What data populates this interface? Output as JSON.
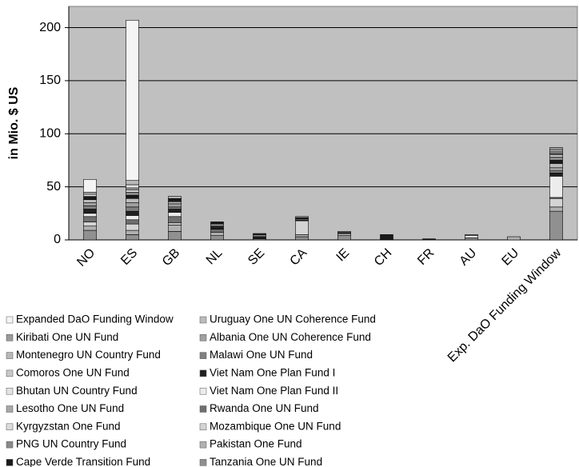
{
  "chart_data": {
    "type": "stacked_bar",
    "ylabel": "in Mio. $ US",
    "categories": [
      "NO",
      "ES",
      "GB",
      "NL",
      "SE",
      "CA",
      "IE",
      "CH",
      "FR",
      "AU",
      "EU",
      "Exp. DaO Funding Window"
    ],
    "ylim": [
      0,
      220
    ],
    "yticks": [
      0,
      50,
      100,
      150,
      200
    ],
    "grid": true,
    "series": [
      {
        "name": "Expanded DaO Funding Window",
        "color": "#f4f4f4",
        "values": [
          12,
          151,
          0,
          0,
          0,
          0,
          0,
          0,
          0,
          0,
          0,
          0
        ]
      },
      {
        "name": "Kiribati One UN Fund",
        "color": "#9a9a9a",
        "values": [
          0,
          0,
          0,
          0,
          0,
          0,
          0,
          0,
          0,
          0,
          0,
          2
        ]
      },
      {
        "name": "Montenegro UN Country Fund",
        "color": "#b8b8b8",
        "values": [
          2,
          4,
          2,
          0,
          0,
          1,
          0,
          0,
          0,
          0,
          0,
          2
        ]
      },
      {
        "name": "Comoros One UN Fund",
        "color": "#c8c8c8",
        "values": [
          0,
          0,
          0,
          0,
          0,
          0,
          0,
          0,
          0,
          0,
          0,
          1
        ]
      },
      {
        "name": "Bhutan UN Country Fund",
        "color": "#e2e2e2",
        "values": [
          2,
          3,
          0,
          0,
          0,
          0,
          0,
          0,
          0,
          0,
          0,
          1
        ]
      },
      {
        "name": "Lesotho One UN Fund",
        "color": "#a8a8a8",
        "values": [
          0,
          2,
          0,
          0,
          0,
          0,
          0,
          0,
          0,
          0,
          0,
          1
        ]
      },
      {
        "name": "Kyrgyzstan One Fund",
        "color": "#dcdcdc",
        "values": [
          0,
          2,
          0,
          0,
          0,
          0,
          0,
          0,
          0,
          0,
          0,
          2
        ]
      },
      {
        "name": "PNG UN Country Fund",
        "color": "#8a8a8a",
        "values": [
          0,
          3,
          0,
          0,
          0,
          0,
          0,
          0,
          0,
          0,
          0,
          3
        ]
      },
      {
        "name": "Cape Verde Transition Fund",
        "color": "#1a1a1a",
        "values": [
          3,
          3,
          3,
          2,
          1,
          1,
          0,
          5,
          1,
          0,
          0,
          3
        ]
      },
      {
        "name": "Uruguay One UN Coherence Fund",
        "color": "#bcbcbc",
        "values": [
          3,
          4,
          2,
          0,
          0,
          1,
          0,
          0,
          0,
          0,
          0,
          4
        ]
      },
      {
        "name": "Albania One UN Coherence Fund",
        "color": "#a0a0a0",
        "values": [
          3,
          4,
          3,
          2,
          0,
          0,
          1,
          0,
          0,
          1,
          0,
          3
        ]
      },
      {
        "name": "Malawi One UN Fund",
        "color": "#808080",
        "values": [
          3,
          4,
          2,
          0,
          2,
          0,
          0,
          0,
          0,
          0,
          0,
          2
        ]
      },
      {
        "name": "Viet Nam One Plan Fund I",
        "color": "#202020",
        "values": [
          4,
          4,
          3,
          3,
          2,
          1,
          1,
          0,
          0,
          0,
          0,
          3
        ]
      },
      {
        "name": "Viet Nam One Plan Fund II",
        "color": "#ececec",
        "values": [
          3,
          4,
          4,
          0,
          0,
          0,
          0,
          0,
          0,
          2,
          0,
          20
        ]
      },
      {
        "name": "Rwanda One UN Fund",
        "color": "#707070",
        "values": [
          5,
          4,
          6,
          3,
          0,
          0,
          0,
          0,
          0,
          0,
          0,
          1
        ]
      },
      {
        "name": "Mozambique One UN Fund",
        "color": "#d4d4d4",
        "values": [
          4,
          6,
          2,
          0,
          0,
          13,
          0,
          0,
          0,
          0,
          0,
          8
        ]
      },
      {
        "name": "Pakistan One Fund",
        "color": "#b0b0b0",
        "values": [
          4,
          4,
          6,
          3,
          0,
          2,
          2,
          0,
          0,
          0,
          3,
          4
        ]
      },
      {
        "name": "Tanzania One UN Fund",
        "color": "#909090",
        "values": [
          9,
          5,
          8,
          4,
          1,
          3,
          4,
          0,
          0,
          2,
          0,
          27
        ]
      }
    ]
  }
}
